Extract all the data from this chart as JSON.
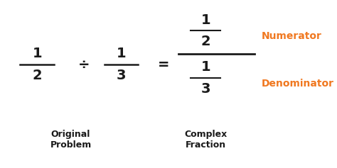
{
  "background_color": "#ffffff",
  "text_color_black": "#1a1a1a",
  "text_color_orange": "#f07820",
  "main_fontsize": 14,
  "label_fontsize": 9,
  "annotation_fontsize": 10,
  "fig_width": 4.74,
  "fig_height": 2.37,
  "dpi": 100,
  "xlim": [
    0,
    10
  ],
  "ylim": [
    0,
    10
  ]
}
